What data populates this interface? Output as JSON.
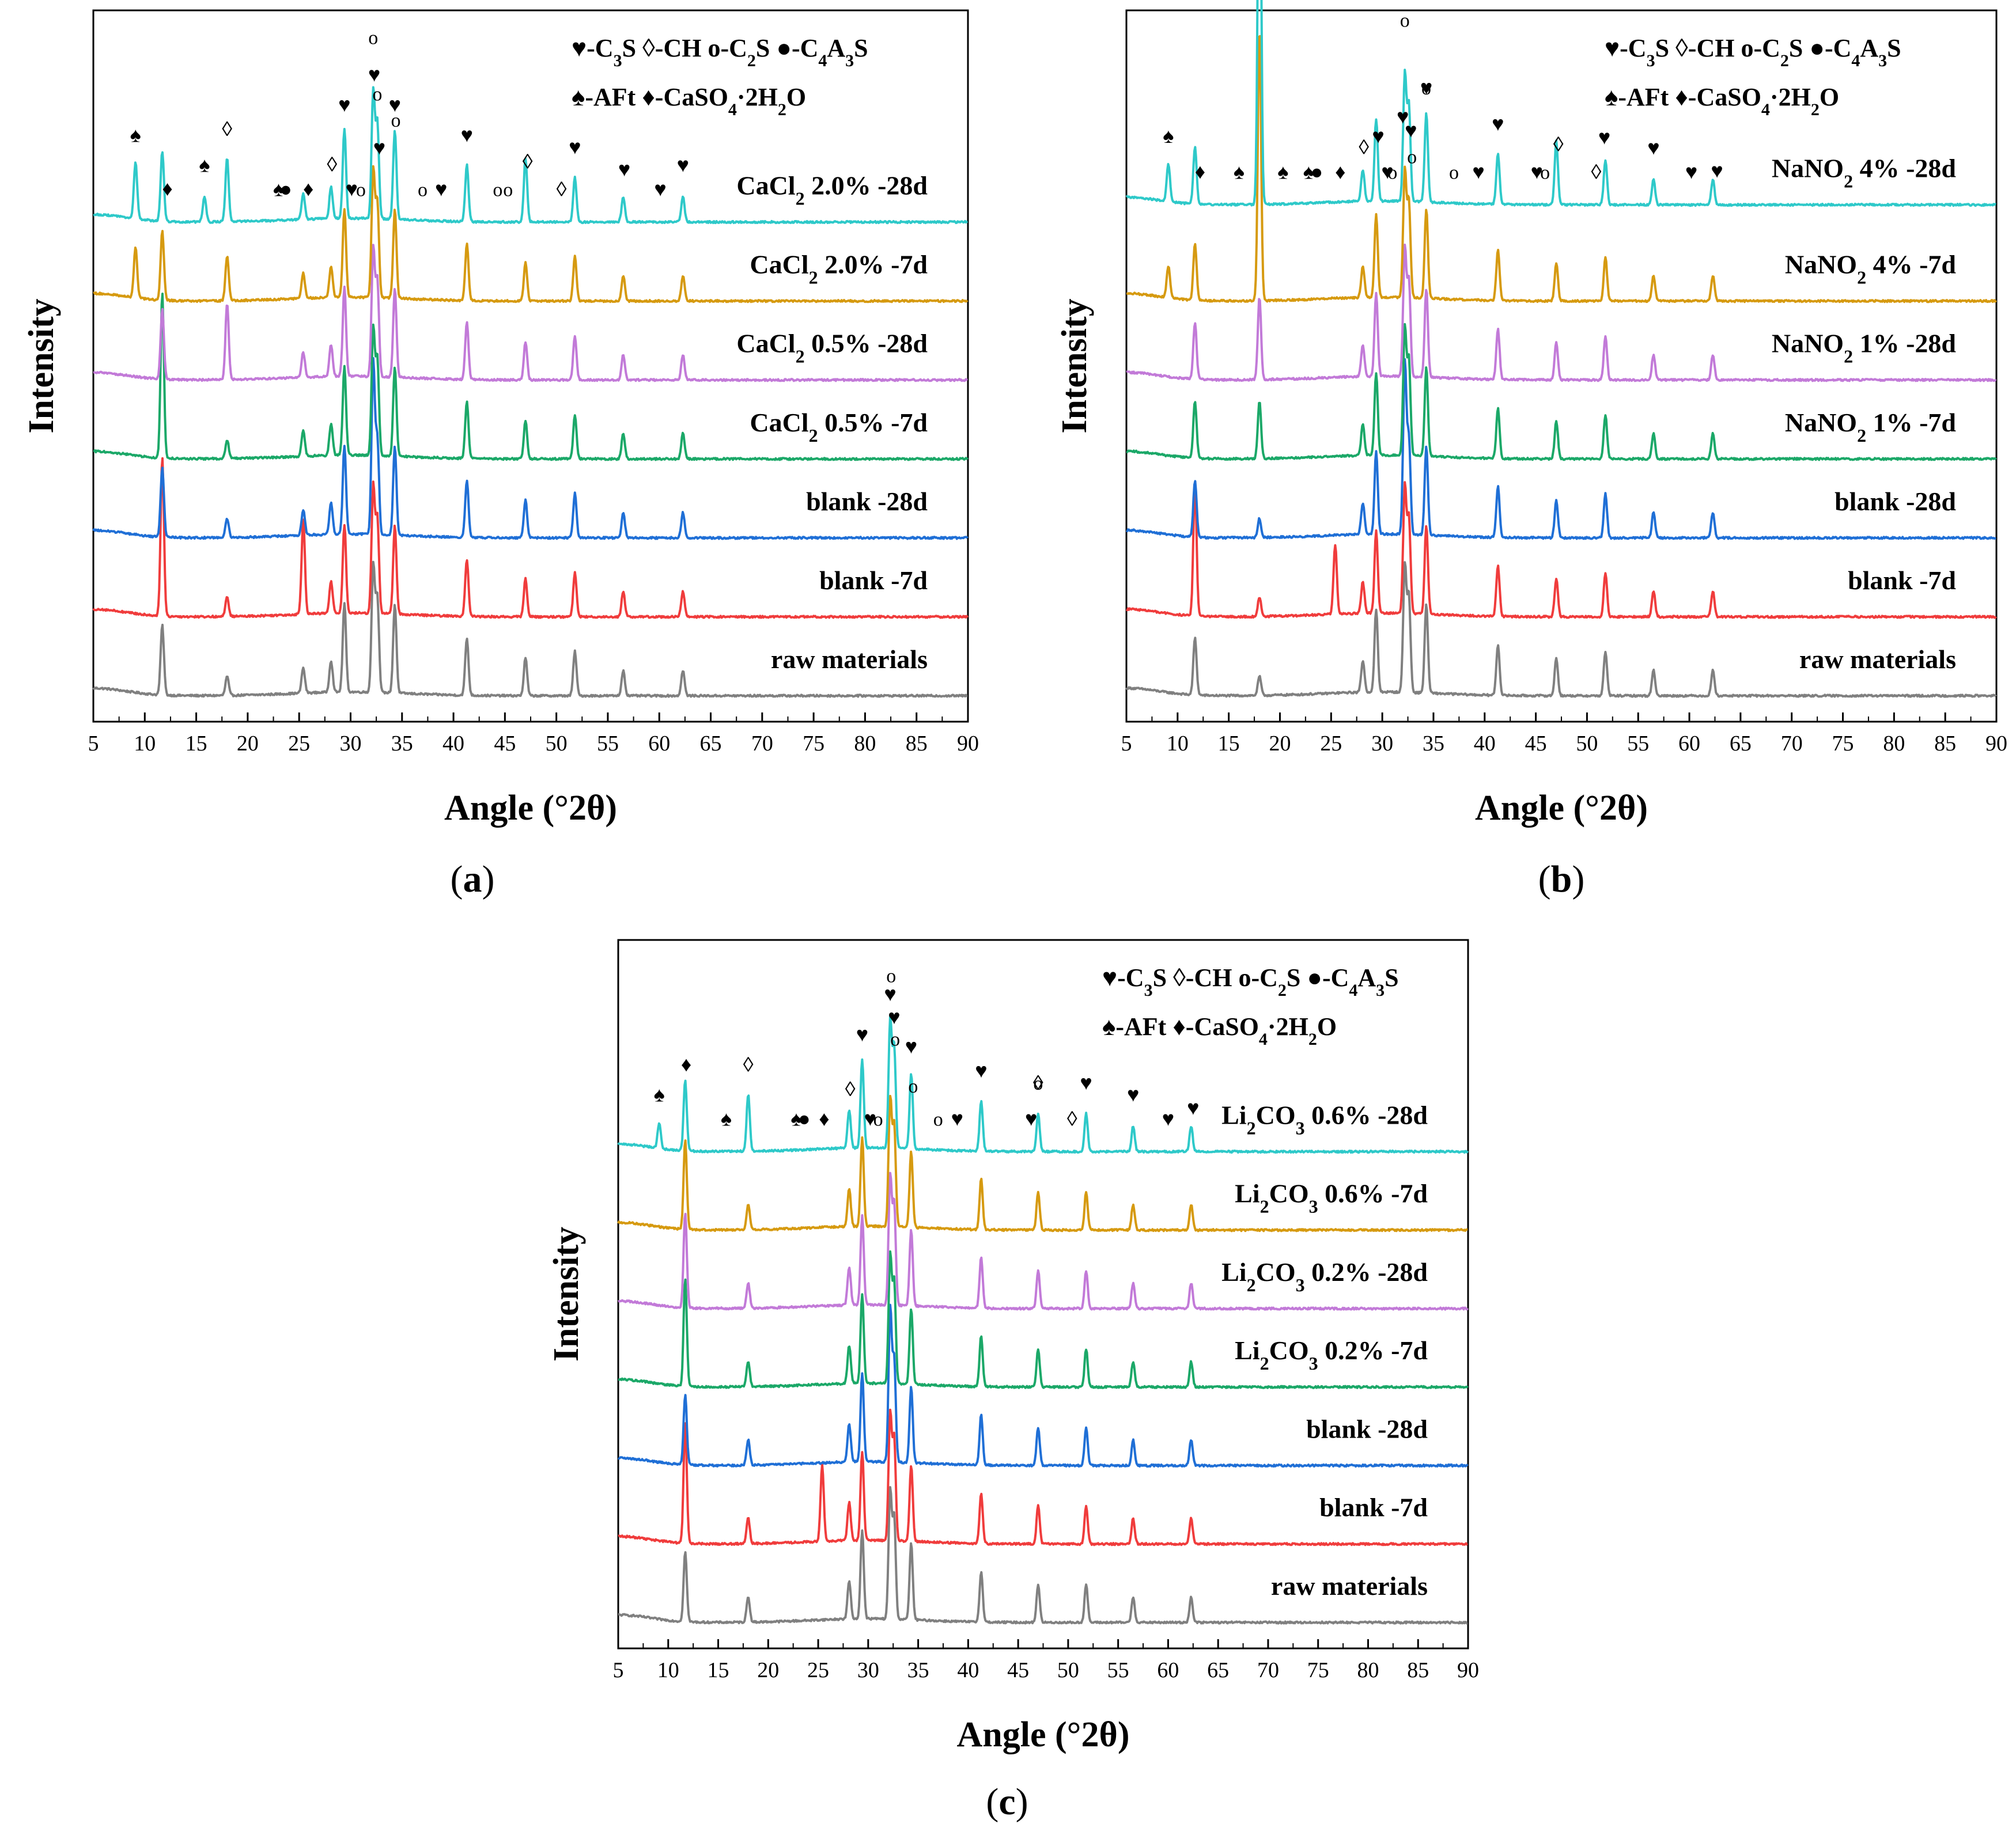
{
  "figure": {
    "panels": [
      {
        "label": "(a)",
        "legend": {
          "line1": [
            {
              "sym": "♥",
              "text": "-C",
              "sub": "3",
              "rest": "S"
            },
            {
              "sym": "◊",
              "text": "-CH",
              "sub": "",
              "rest": ""
            },
            {
              "sym": "o",
              "text": "-C",
              "sub": "2",
              "rest": "S"
            },
            {
              "sym": "●",
              "text": "-C",
              "sub": "4",
              "rest": "A",
              "sub2": "3",
              "rest2": "S"
            }
          ],
          "line2": [
            {
              "sym": "♠",
              "text": "-AFt"
            },
            {
              "sym": "♦",
              "text": "-CaSO",
              "sub": "4",
              "rest": "·2H",
              "sub2": "2",
              "rest2": "O"
            }
          ]
        },
        "series": [
          {
            "name": "raw materials",
            "label_main": "raw materials",
            "color": "#808080"
          },
          {
            "name": "blank -7d",
            "label_main": "blank -7d",
            "color": "#f03c3c"
          },
          {
            "name": "blank -28d",
            "label_main": "blank -28d",
            "color": "#1f6fd6"
          },
          {
            "name": "CaCl2 0.5% -7d",
            "label_pre": "CaCl",
            "label_sub": "2",
            "label_post": " 0.5% -7d",
            "color": "#1ba868"
          },
          {
            "name": "CaCl2 0.5% -28d",
            "label_pre": "CaCl",
            "label_sub": "2",
            "label_post": " 0.5% -28d",
            "color": "#c27ad8"
          },
          {
            "name": "CaCl2 2.0% -7d",
            "label_pre": "CaCl",
            "label_sub": "2",
            "label_post": " 2.0% -7d",
            "color": "#d69a10"
          },
          {
            "name": "CaCl2 2.0% -28d",
            "label_pre": "CaCl",
            "label_sub": "2",
            "label_post": " 2.0% -28d",
            "color": "#2ec9c9"
          }
        ]
      },
      {
        "label": "(b)",
        "legend": {
          "line1": [
            {
              "sym": "♥",
              "text": "-C",
              "sub": "3",
              "rest": "S"
            },
            {
              "sym": "◊",
              "text": "-CH",
              "sub": "",
              "rest": ""
            },
            {
              "sym": "o",
              "text": "-C",
              "sub": "2",
              "rest": "S"
            },
            {
              "sym": "●",
              "text": "-C",
              "sub": "4",
              "rest": "A",
              "sub2": "3",
              "rest2": "S"
            }
          ],
          "line2": [
            {
              "sym": "♠",
              "text": "-AFt"
            },
            {
              "sym": "♦",
              "text": "-CaSO",
              "sub": "4",
              "rest": "·2H",
              "sub2": "2",
              "rest2": "O"
            }
          ]
        },
        "series": [
          {
            "name": "raw materials",
            "label_main": "raw materials",
            "color": "#808080"
          },
          {
            "name": "blank -7d",
            "label_main": "blank -7d",
            "color": "#f03c3c"
          },
          {
            "name": "blank -28d",
            "label_main": "blank -28d",
            "color": "#1f6fd6"
          },
          {
            "name": "NaNO2 1% -7d",
            "label_pre": "NaNO",
            "label_sub": "2",
            "label_post": " 1% -7d",
            "color": "#1ba868"
          },
          {
            "name": "NaNO2 1% -28d",
            "label_pre": "NaNO",
            "label_sub": "2",
            "label_post": " 1% -28d",
            "color": "#c27ad8"
          },
          {
            "name": "NaNO2 4% -7d",
            "label_pre": "NaNO",
            "label_sub": "2",
            "label_post": " 4% -7d",
            "color": "#d69a10"
          },
          {
            "name": "NaNO2 4% -28d",
            "label_pre": "NaNO",
            "label_sub": "2",
            "label_post": " 4% -28d",
            "color": "#2ec9c9"
          }
        ]
      },
      {
        "label": "(c)",
        "legend": {
          "line1": [
            {
              "sym": "♥",
              "text": "-C",
              "sub": "3",
              "rest": "S"
            },
            {
              "sym": "◊",
              "text": "-CH",
              "sub": "",
              "rest": ""
            },
            {
              "sym": "o",
              "text": "-C",
              "sub": "2",
              "rest": "S"
            },
            {
              "sym": "●",
              "text": "-C",
              "sub": "4",
              "rest": "A",
              "sub2": "3",
              "rest2": "S"
            }
          ],
          "line2": [
            {
              "sym": "♠",
              "text": "-AFt"
            },
            {
              "sym": "♦",
              "text": "-CaSO",
              "sub": "4",
              "rest": "·2H",
              "sub2": "2",
              "rest2": "O"
            }
          ]
        },
        "series": [
          {
            "name": "raw materials",
            "label_main": "raw materials",
            "color": "#808080"
          },
          {
            "name": "blank -7d",
            "label_main": "blank -7d",
            "color": "#f03c3c"
          },
          {
            "name": "blank -28d",
            "label_main": "blank -28d",
            "color": "#1f6fd6"
          },
          {
            "name": "Li2CO3 0.2% -7d",
            "label_pre": "Li",
            "label_sub": "2",
            "label_post": "CO",
            "label_sub2": "3",
            "label_post2": " 0.2% -7d",
            "color": "#1ba868"
          },
          {
            "name": "Li2CO3 0.2% -28d",
            "label_pre": "Li",
            "label_sub": "2",
            "label_post": "CO",
            "label_sub2": "3",
            "label_post2": " 0.2% -28d",
            "color": "#c27ad8"
          },
          {
            "name": "Li2CO3 0.6% -7d",
            "label_pre": "Li",
            "label_sub": "2",
            "label_post": "CO",
            "label_sub2": "3",
            "label_post2": " 0.6% -7d",
            "color": "#d69a10"
          },
          {
            "name": "Li2CO3 0.6% -28d",
            "label_pre": "Li",
            "label_sub": "2",
            "label_post": "CO",
            "label_sub2": "3",
            "label_post2": " 0.6% -28d",
            "color": "#2ec9c9"
          }
        ]
      }
    ]
  },
  "chart_data": [
    {
      "type": "line",
      "title": "(a)",
      "xlabel": "Angle (°2θ)",
      "ylabel": "Intensity",
      "xlim": [
        5,
        90
      ],
      "xticks": [
        5,
        10,
        15,
        20,
        25,
        30,
        35,
        40,
        45,
        50,
        55,
        60,
        65,
        70,
        75,
        80,
        85,
        90
      ],
      "yticks_shown": false,
      "base_peaks": [
        [
          11.7,
          0.55
        ],
        [
          29.4,
          0.7
        ],
        [
          32.2,
          1.0
        ],
        [
          32.6,
          0.75
        ],
        [
          34.3,
          0.7
        ],
        [
          41.3,
          0.45
        ],
        [
          47.0,
          0.3
        ],
        [
          51.8,
          0.35
        ],
        [
          56.5,
          0.2
        ],
        [
          62.3,
          0.2
        ],
        [
          18.0,
          0.15
        ],
        [
          25.4,
          0.2
        ],
        [
          28.1,
          0.25
        ]
      ],
      "extra_peaks": {
        "blank -7d": [
          [
            25.4,
            0.55
          ],
          [
            11.7,
            0.7
          ]
        ],
        "blank -28d": [
          [
            32.2,
            0.35
          ]
        ],
        "CaCl2 0.5% -7d": [
          [
            11.7,
            0.75
          ]
        ],
        "CaCl2 0.5% -28d": [
          [
            18.0,
            0.45
          ]
        ],
        "CaCl2 2.0% -7d": [
          [
            9.1,
            0.4
          ],
          [
            18.0,
            0.2
          ]
        ],
        "CaCl2 2.0% -28d": [
          [
            9.1,
            0.45
          ],
          [
            18.0,
            0.35
          ],
          [
            47.0,
            0.2
          ],
          [
            15.8,
            0.2
          ]
        ]
      },
      "phase_annotations": [
        {
          "phase": "AFt",
          "symbol": "♠",
          "x": [
            9.1,
            15.8,
            23.0
          ]
        },
        {
          "phase": "CaSO4·2H2O",
          "symbol": "♦",
          "x": [
            12.2,
            25.9
          ]
        },
        {
          "phase": "CH",
          "symbol": "◊",
          "x": [
            18.0,
            28.2,
            47.2,
            50.5
          ]
        },
        {
          "phase": "C4A3S",
          "symbol": "●",
          "x": [
            23.7
          ]
        },
        {
          "phase": "C3S",
          "symbol": "♥",
          "x": [
            29.4,
            30.1,
            32.3,
            32.8,
            34.3,
            38.8,
            41.3,
            51.8,
            56.6,
            60.1,
            62.3
          ]
        },
        {
          "phase": "C2S",
          "symbol": "o",
          "x": [
            31.0,
            32.2,
            32.6,
            34.4,
            37.0,
            44.3,
            45.3
          ]
        }
      ],
      "series_order_bottom_to_top": [
        "raw materials",
        "blank -7d",
        "blank -28d",
        "CaCl2 0.5% -7d",
        "CaCl2 0.5% -28d",
        "CaCl2 2.0% -7d",
        "CaCl2 2.0% -28d"
      ]
    },
    {
      "type": "line",
      "title": "(b)",
      "xlabel": "Angle (°2θ)",
      "ylabel": "Intensity",
      "xlim": [
        5,
        90
      ],
      "xticks": [
        5,
        10,
        15,
        20,
        25,
        30,
        35,
        40,
        45,
        50,
        55,
        60,
        65,
        70,
        75,
        80,
        85,
        90
      ],
      "yticks_shown": false,
      "base_peaks": [
        [
          11.7,
          0.45
        ],
        [
          29.4,
          0.65
        ],
        [
          32.2,
          1.0
        ],
        [
          32.6,
          0.75
        ],
        [
          34.3,
          0.7
        ],
        [
          41.3,
          0.4
        ],
        [
          47.0,
          0.3
        ],
        [
          51.8,
          0.35
        ],
        [
          56.5,
          0.2
        ],
        [
          62.3,
          0.2
        ],
        [
          18.0,
          0.15
        ],
        [
          28.1,
          0.25
        ]
      ],
      "extra_peaks": {
        "blank -7d": [
          [
            25.4,
            0.55
          ],
          [
            11.7,
            0.6
          ]
        ],
        "blank -28d": [
          [
            32.2,
            0.35
          ]
        ],
        "NaNO2 1% -7d": [
          [
            18.0,
            0.3
          ]
        ],
        "NaNO2 1% -28d": [
          [
            18.0,
            0.5
          ]
        ],
        "NaNO2 4% -7d": [
          [
            18.0,
            2.0
          ],
          [
            9.1,
            0.25
          ]
        ],
        "NaNO2 4% -28d": [
          [
            18.0,
            3.3
          ],
          [
            9.1,
            0.3
          ],
          [
            47.0,
            0.2
          ]
        ]
      },
      "phase_annotations": [
        {
          "phase": "AFt",
          "symbol": "♠",
          "x": [
            9.1,
            16.0,
            20.3,
            22.8
          ]
        },
        {
          "phase": "CaSO4·2H2O",
          "symbol": "♦",
          "x": [
            12.2,
            25.9
          ]
        },
        {
          "phase": "CH",
          "symbol": "◊",
          "x": [
            18.0,
            28.2,
            47.2,
            50.9
          ]
        },
        {
          "phase": "C4A3S",
          "symbol": "●",
          "x": [
            23.6
          ]
        },
        {
          "phase": "C3S",
          "symbol": "♥",
          "x": [
            29.6,
            30.5,
            32.0,
            32.8,
            34.3,
            39.4,
            41.3,
            45.1,
            51.7,
            56.5,
            60.2,
            62.7
          ]
        },
        {
          "phase": "C2S",
          "symbol": "o",
          "x": [
            31.0,
            32.2,
            32.9,
            34.3,
            37.0,
            45.9
          ]
        }
      ],
      "series_order_bottom_to_top": [
        "raw materials",
        "blank -7d",
        "blank -28d",
        "NaNO2 1% -7d",
        "NaNO2 1% -28d",
        "NaNO2 4% -7d",
        "NaNO2 4% -28d"
      ]
    },
    {
      "type": "line",
      "title": "(c)",
      "xlabel": "Angle (°2θ)",
      "ylabel": "Intensity",
      "xlim": [
        5,
        90
      ],
      "xticks": [
        5,
        10,
        15,
        20,
        25,
        30,
        35,
        40,
        45,
        50,
        55,
        60,
        65,
        70,
        75,
        80,
        85,
        90
      ],
      "yticks_shown": false,
      "base_peaks": [
        [
          11.7,
          0.55
        ],
        [
          29.4,
          0.7
        ],
        [
          32.2,
          1.0
        ],
        [
          32.6,
          0.8
        ],
        [
          34.3,
          0.6
        ],
        [
          41.3,
          0.4
        ],
        [
          47.0,
          0.3
        ],
        [
          51.8,
          0.3
        ],
        [
          56.5,
          0.2
        ],
        [
          62.3,
          0.2
        ],
        [
          18.0,
          0.2
        ],
        [
          28.1,
          0.3
        ]
      ],
      "extra_peaks": {
        "blank -7d": [
          [
            25.4,
            0.6
          ],
          [
            11.7,
            0.4
          ]
        ],
        "blank -28d": [
          [
            32.2,
            0.2
          ]
        ],
        "Li2CO3 0.2% -7d": [
          [
            11.7,
            0.3
          ]
        ],
        "Li2CO3 0.2% -28d": [
          [
            11.7,
            0.2
          ]
        ],
        "Li2CO3 0.6% -7d": [
          [
            11.7,
            0.15
          ]
        ],
        "Li2CO3 0.6% -28d": [
          [
            18.0,
            0.25
          ],
          [
            9.1,
            0.2
          ]
        ]
      },
      "phase_annotations": [
        {
          "phase": "AFt",
          "symbol": "♠",
          "x": [
            9.1,
            15.8,
            22.8
          ]
        },
        {
          "phase": "CaSO4·2H2O",
          "symbol": "♦",
          "x": [
            11.8,
            25.6
          ]
        },
        {
          "phase": "CH",
          "symbol": "◊",
          "x": [
            18.0,
            28.2,
            47.0,
            50.4
          ]
        },
        {
          "phase": "C4A3S",
          "symbol": "●",
          "x": [
            23.6
          ]
        },
        {
          "phase": "C3S",
          "symbol": "♥",
          "x": [
            29.4,
            30.2,
            32.2,
            32.6,
            34.3,
            38.9,
            41.3,
            46.3,
            51.8,
            56.5,
            60.0,
            62.5
          ]
        },
        {
          "phase": "C2S",
          "symbol": "o",
          "x": [
            31.0,
            32.3,
            32.7,
            34.5,
            37.0,
            47.0
          ]
        }
      ],
      "series_order_bottom_to_top": [
        "raw materials",
        "blank -7d",
        "blank -28d",
        "Li2CO3 0.2% -7d",
        "Li2CO3 0.2% -28d",
        "Li2CO3 0.6% -7d",
        "Li2CO3 0.6% -28d"
      ]
    }
  ]
}
